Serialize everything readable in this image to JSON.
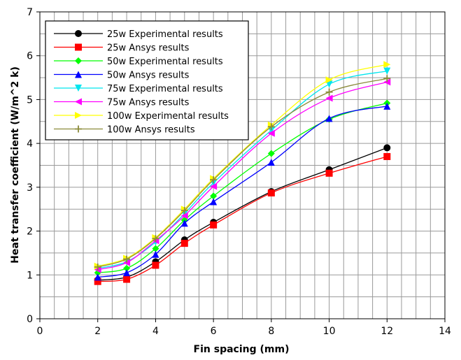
{
  "chart_data": {
    "type": "line",
    "title": "",
    "xlabel": "Fin spacing (mm)",
    "ylabel": "Heat transfer coefficient (W/m^2 k)",
    "xlim": [
      0,
      14
    ],
    "ylim": [
      0,
      7
    ],
    "x_ticks": [
      0,
      2,
      4,
      6,
      8,
      10,
      12,
      14
    ],
    "y_ticks": [
      0,
      1,
      2,
      3,
      4,
      5,
      6,
      7
    ],
    "grid": true,
    "legend_position": "top-left",
    "x": [
      2,
      3,
      4,
      5,
      6,
      8,
      10,
      12
    ],
    "series": [
      {
        "name": "25w Experimental results",
        "color": "#000000",
        "marker": "circle",
        "values": [
          0.88,
          0.95,
          1.3,
          1.8,
          2.2,
          2.9,
          3.4,
          3.9
        ]
      },
      {
        "name": "25w Ansys results",
        "color": "#ff0000",
        "marker": "square",
        "values": [
          0.85,
          0.9,
          1.22,
          1.72,
          2.14,
          2.87,
          3.32,
          3.7
        ]
      },
      {
        "name": "50w Experimental results",
        "color": "#00ff00",
        "marker": "diamond",
        "values": [
          1.05,
          1.15,
          1.6,
          2.25,
          2.8,
          3.77,
          4.55,
          4.92
        ]
      },
      {
        "name": "50w Ansys results",
        "color": "#0000ff",
        "marker": "triangle-up",
        "values": [
          0.95,
          1.05,
          1.47,
          2.18,
          2.67,
          3.57,
          4.57,
          4.85
        ]
      },
      {
        "name": "75w Experimental results",
        "color": "#00e5ee",
        "marker": "triangle-down",
        "values": [
          1.15,
          1.3,
          1.75,
          2.4,
          3.1,
          4.3,
          5.35,
          5.65
        ]
      },
      {
        "name": "75w Ansys results",
        "color": "#ff00ff",
        "marker": "triangle-left",
        "values": [
          1.12,
          1.28,
          1.78,
          2.35,
          3.02,
          4.23,
          5.03,
          5.4
        ]
      },
      {
        "name": "100w Experimental results",
        "color": "#ffff00",
        "marker": "triangle-right",
        "values": [
          1.2,
          1.38,
          1.85,
          2.5,
          3.2,
          4.42,
          5.45,
          5.8
        ]
      },
      {
        "name": "100w Ansys results",
        "color": "#8b8b3a",
        "marker": "plus",
        "values": [
          1.18,
          1.36,
          1.83,
          2.47,
          3.17,
          4.38,
          5.17,
          5.48
        ]
      }
    ]
  }
}
